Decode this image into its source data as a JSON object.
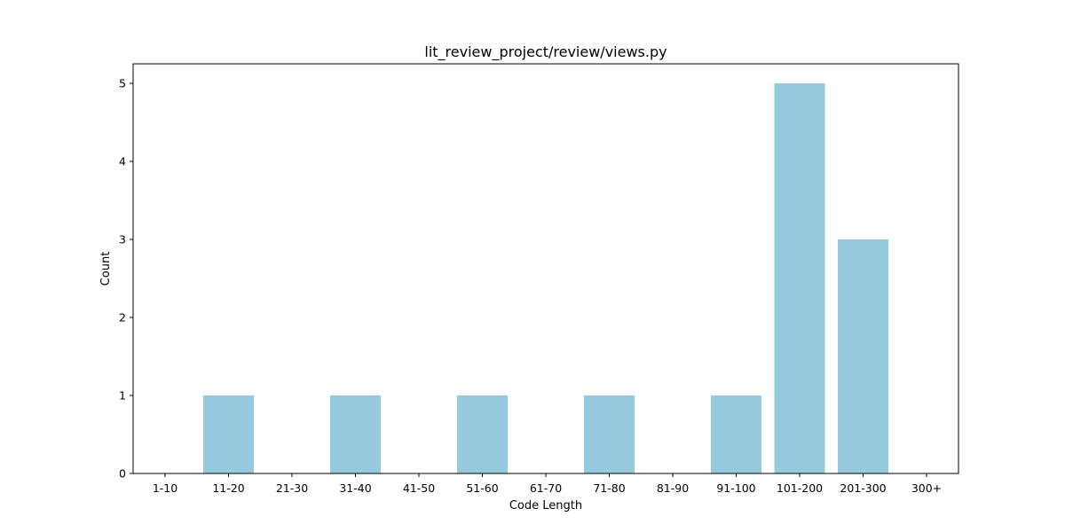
{
  "chart_data": {
    "type": "bar",
    "title": "lit_review_project/review/views.py",
    "xlabel": "Code Length",
    "ylabel": "Count",
    "categories": [
      "1-10",
      "11-20",
      "21-30",
      "31-40",
      "41-50",
      "51-60",
      "61-70",
      "71-80",
      "81-90",
      "91-100",
      "101-200",
      "201-300",
      "300+"
    ],
    "values": [
      0,
      1,
      0,
      1,
      0,
      1,
      0,
      1,
      0,
      1,
      5,
      3,
      0
    ],
    "ylim": [
      0,
      5.25
    ],
    "yticks": [
      0,
      1,
      2,
      3,
      4,
      5
    ],
    "bar_color": "#96c9dd",
    "grid": false,
    "legend": "none"
  }
}
